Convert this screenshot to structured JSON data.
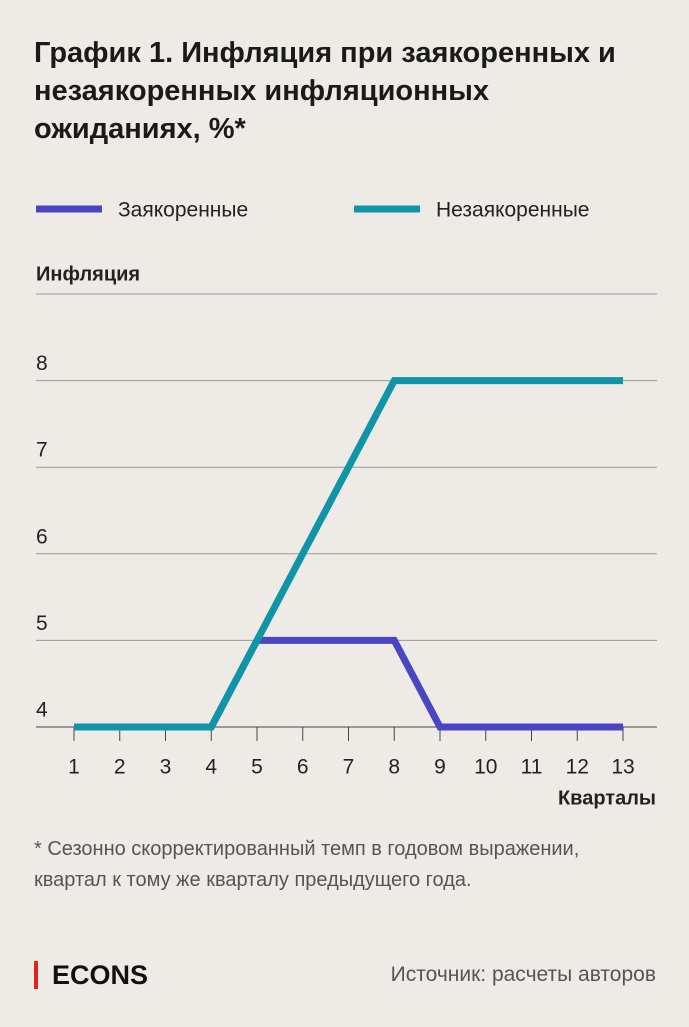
{
  "chart_data": {
    "type": "line",
    "title": "График 1. Инфляция при заякоренных и незаякоренных инфляционных ожиданиях, %*",
    "y_label": "Инфляция",
    "x_label": "Кварталы",
    "x": [
      1,
      2,
      3,
      4,
      5,
      6,
      7,
      8,
      9,
      10,
      11,
      12,
      13
    ],
    "series": [
      {
        "name": "Заякоренные",
        "color": "#4a45c2",
        "values": [
          4,
          4,
          4,
          4,
          5,
          5,
          5,
          5,
          4,
          4,
          4,
          4,
          4
        ]
      },
      {
        "name": "Незаякоренные",
        "color": "#0f94a8",
        "values": [
          4,
          4,
          4,
          4,
          5,
          6,
          7,
          8,
          8,
          8,
          8,
          8,
          8
        ]
      }
    ],
    "xlim": [
      1,
      13
    ],
    "xticks": [
      1,
      2,
      3,
      4,
      5,
      6,
      7,
      8,
      9,
      10,
      11,
      12,
      13
    ],
    "ylim": [
      4,
      9
    ],
    "yticks": [
      4,
      5,
      6,
      7,
      8
    ],
    "grid": true,
    "footnote": "* Сезонно скорректированный темп в годовом выражении, квартал к тому же кварталу предыдущего года.",
    "logo": "ECONS",
    "source": "Источник: расчеты авторов"
  }
}
